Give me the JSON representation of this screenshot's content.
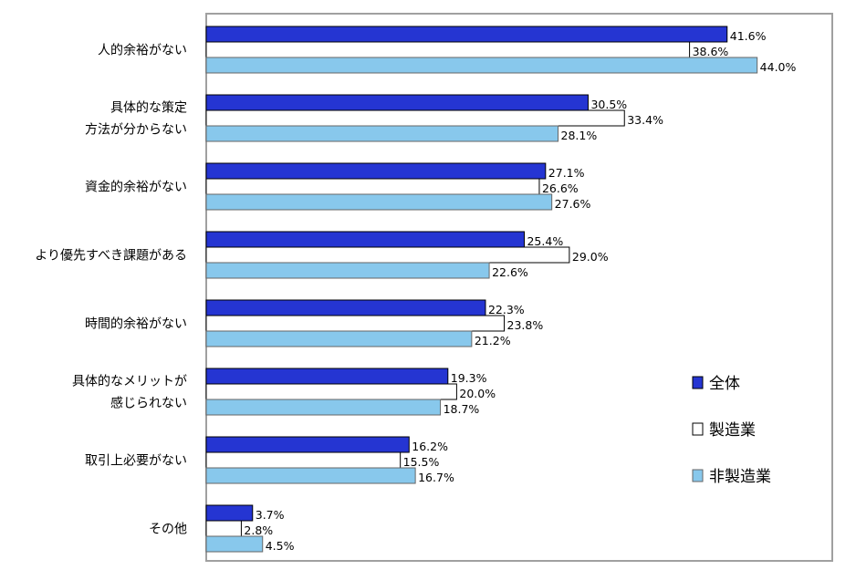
{
  "chart_data": {
    "type": "bar",
    "orientation": "horizontal",
    "title": "",
    "xlabel": "",
    "ylabel": "",
    "xlim": [
      0,
      50
    ],
    "grid": false,
    "legend_position": "right",
    "categories": [
      [
        "人的余裕がない"
      ],
      [
        "具体的な策定",
        "方法が分からない"
      ],
      [
        "資金的余裕がない"
      ],
      [
        "より優先すべき課題がある"
      ],
      [
        "時間的余裕がない"
      ],
      [
        "具体的なメリットが",
        "感じられない"
      ],
      [
        "取引上必要がない"
      ],
      [
        "その他"
      ]
    ],
    "series": [
      {
        "name": "全体",
        "color": "#2535D2",
        "values": [
          41.6,
          30.5,
          27.1,
          25.4,
          22.3,
          19.3,
          16.2,
          3.7
        ]
      },
      {
        "name": "製造業",
        "color": "#FFFFFF",
        "values": [
          38.6,
          33.4,
          26.6,
          29.0,
          23.8,
          20.0,
          15.5,
          2.8
        ]
      },
      {
        "name": "非製造業",
        "color": "#88C8EC",
        "values": [
          44.0,
          28.1,
          27.6,
          22.6,
          21.2,
          18.7,
          16.7,
          4.5
        ]
      }
    ]
  }
}
